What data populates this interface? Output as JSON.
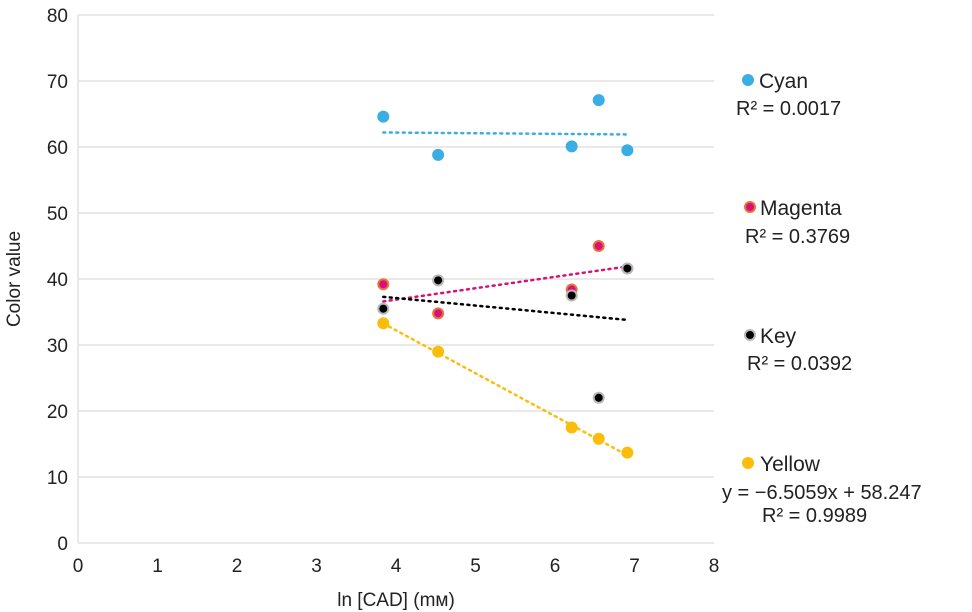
{
  "chart_data": {
    "type": "scatter",
    "xlabel": "ln [CAD] (mᴍ)",
    "ylabel": "Color value",
    "xlim": [
      0,
      8
    ],
    "ylim": [
      0,
      80
    ],
    "xticks": [
      "0",
      "1",
      "2",
      "3",
      "4",
      "5",
      "6",
      "7",
      "8"
    ],
    "yticks": [
      "0",
      "10",
      "20",
      "30",
      "40",
      "50",
      "60",
      "70",
      "80"
    ],
    "grid": "horizontal",
    "legend_placement": "right",
    "series": [
      {
        "name": "Cyan",
        "color": "#3aaee4",
        "ring": "#3aaee4",
        "x": [
          3.84,
          4.53,
          6.21,
          6.55,
          6.91
        ],
        "y": [
          64.6,
          58.8,
          60.1,
          67.1,
          59.5
        ],
        "trendline": {
          "type": "linear",
          "start": 62.2,
          "end": 61.9
        },
        "r2_label": "R² = 0.0017"
      },
      {
        "name": "Magenta",
        "color": "#d6127a",
        "ring": "#e8743a",
        "x": [
          3.84,
          4.53,
          6.21,
          6.55,
          6.91
        ],
        "y": [
          39.2,
          34.8,
          38.4,
          45.0,
          41.6
        ],
        "trendline": {
          "type": "linear",
          "start": 36.6,
          "end": 41.9
        },
        "r2_label": "R² = 0.3769"
      },
      {
        "name": "Key",
        "color": "#000000",
        "ring": "#b8b8b8",
        "x": [
          3.84,
          4.53,
          6.21,
          6.55,
          6.91
        ],
        "y": [
          35.5,
          39.8,
          37.5,
          22.0,
          41.6
        ],
        "trendline": {
          "type": "linear",
          "start": 37.3,
          "end": 33.8
        },
        "r2_label": "R² = 0.0392"
      },
      {
        "name": "Yellow",
        "color": "#fbbd0a",
        "ring": "#fbbd0a",
        "x": [
          3.84,
          4.53,
          6.21,
          6.55,
          6.91
        ],
        "y": [
          33.3,
          29.0,
          17.5,
          15.8,
          13.7
        ],
        "trendline": {
          "type": "linear",
          "slope": -6.5059,
          "intercept": 58.247
        },
        "equation_label": "y = −6.5059x + 58.247",
        "r2_label": "R² = 0.9989"
      }
    ]
  }
}
